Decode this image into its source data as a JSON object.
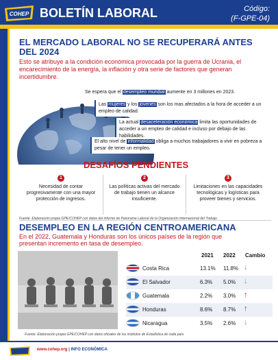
{
  "header": {
    "logo_text": "COHEP",
    "title": "BOLETÍN LABORAL",
    "code_label": "Código:",
    "code_value": "(F-GPE-04)"
  },
  "section1": {
    "title": "EL MERCADO LABORAL NO SE RECUPERARÁ ANTES DEL 2024",
    "lead": "Esto se atribuye a la condición económica provocada por la guerra de Ucrania, el encarecimiento de la energía, la inflación y otra serie de factores que generan incertidumbre.",
    "facts": [
      {
        "pre": "Se espera que el ",
        "hl": "desempleo mundial",
        "post": " aumente en 3 millones en 2023."
      },
      {
        "pre": "Las ",
        "hl": "mujeres",
        "mid": " y los ",
        "hl2": "jóvenes",
        "post": " son los mas afectados a la hora de acceder a un empleo de calidad."
      },
      {
        "pre": "La actual ",
        "hl": "desaceleración económica",
        "post": " limita las oportunidades de acceder a un empleo de calidad e incluso por debajo de las habilidades."
      },
      {
        "pre": "El alto nivel de ",
        "hl": "informalidad",
        "post": " obliga a muchos trabajadores a vivir en pobreza a pesar de tener un empleo."
      }
    ]
  },
  "challenges": {
    "title": "DESAFÍOS PENDIENTES",
    "items": [
      {
        "num": "1",
        "text": "Necesidad de contar progresivamente con una mayor protección de ingresos."
      },
      {
        "num": "2",
        "text": "Las políticas activas del mercado de trabajo tienen un alcance insuficiente."
      },
      {
        "num": "3",
        "text": "Limitaciones en las capacidades tecnológicas y logísticas para proveer bienes y servicios."
      }
    ],
    "source": "Fuente: Elaboración propia GPE/COHEP con datos del informe de Panorama Laboral de la Organización Internacional del Trabajo"
  },
  "section2": {
    "title": "DESEMPLEO EN LA REGIÓN CENTROAMERICANA",
    "lead": "En el 2022, Guatemala y Honduras son los únicos países de la región que presentan incremento en tasa de desempleo.",
    "table": {
      "headers": [
        "2021",
        "2022",
        "Cambio"
      ],
      "rows": [
        {
          "country": "Costa Rica",
          "v2021": "13.1%",
          "v2022": "11.8%",
          "change": "down"
        },
        {
          "country": "El Salvador",
          "v2021": "6.3%",
          "v2022": "5.0%",
          "change": "down"
        },
        {
          "country": "Guatemala",
          "v2021": "2.2%",
          "v2022": "3.0%",
          "change": "up"
        },
        {
          "country": "Honduras",
          "v2021": "8.6%",
          "v2022": "8.7%",
          "change": "up"
        },
        {
          "country": "Nicaragua",
          "v2021": "3.5%",
          "v2022": "2.6%",
          "change": "down"
        }
      ]
    },
    "source": "Fuente: Elaboración propia GPE/COHEP con datos oficiales de los institutos de Estadística de cada país."
  },
  "footer": {
    "url": "www.cohep.org",
    "section": " | INFO ECONÓMICA"
  },
  "colors": {
    "navy": "#1b3f8f",
    "gold": "#f2c318",
    "red": "#c4161c",
    "green": "#4caf50"
  }
}
